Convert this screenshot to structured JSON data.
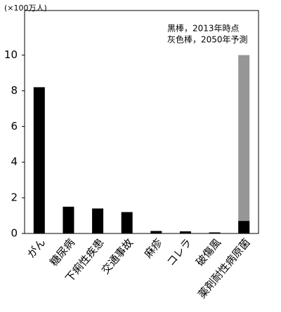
{
  "chart_data": {
    "type": "bar",
    "unit_label": "(×100万人)",
    "categories": [
      "がん",
      "糖尿病",
      "下痢性疾患",
      "交通事故",
      "麻疹",
      "コレラ",
      "破傷風",
      "薬剤耐性病原菌"
    ],
    "series": [
      {
        "name": "灰色棒，2050年予測",
        "color": "#969696",
        "values": [
          null,
          null,
          null,
          null,
          null,
          null,
          null,
          10
        ]
      },
      {
        "name": "黒棒，2013年時点",
        "color": "#000000",
        "values": [
          8.2,
          1.5,
          1.4,
          1.2,
          0.14,
          0.12,
          0.06,
          0.7
        ]
      }
    ],
    "ylim": [
      0,
      12.5
    ],
    "yticks": [
      0,
      2,
      4,
      6,
      8,
      10
    ]
  }
}
